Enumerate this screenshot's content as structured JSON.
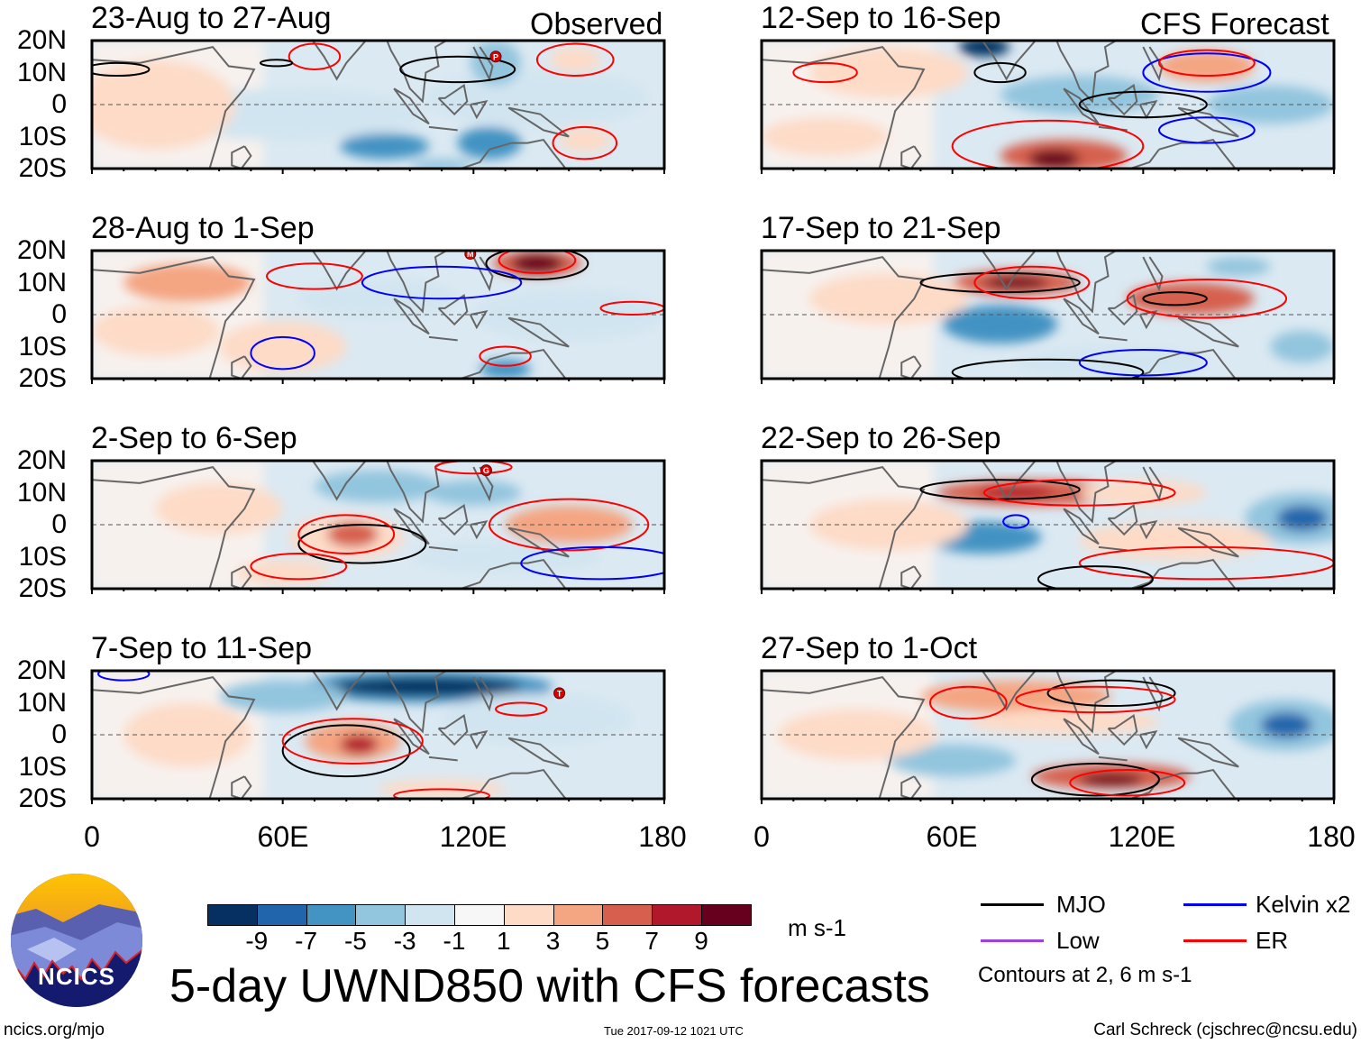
{
  "header": {
    "observed_label": "Observed",
    "forecast_label": "CFS Forecast"
  },
  "panels": [
    {
      "title": "23-Aug to 27-Aug",
      "column": "left",
      "storms": [
        {
          "label": "P",
          "lon": 127,
          "lat": 15
        }
      ]
    },
    {
      "title": "28-Aug to 1-Sep",
      "column": "left",
      "storms": [
        {
          "label": "M",
          "lon": 119,
          "lat": 19
        }
      ]
    },
    {
      "title": "2-Sep to 6-Sep",
      "column": "left",
      "storms": [
        {
          "label": "G",
          "lon": 124,
          "lat": 17
        }
      ]
    },
    {
      "title": "7-Sep to 11-Sep",
      "column": "left",
      "storms": [
        {
          "label": "T",
          "lon": 147,
          "lat": 13
        }
      ]
    },
    {
      "title": "12-Sep to 16-Sep",
      "column": "right",
      "storms": []
    },
    {
      "title": "17-Sep to 21-Sep",
      "column": "right",
      "storms": []
    },
    {
      "title": "22-Sep to 26-Sep",
      "column": "right",
      "storms": []
    },
    {
      "title": "27-Sep to 1-Oct",
      "column": "right",
      "storms": []
    }
  ],
  "axes": {
    "y_ticks": [
      "20N",
      "10N",
      "0",
      "10S",
      "20S"
    ],
    "x_ticks": [
      "0",
      "60E",
      "120E",
      "180"
    ]
  },
  "colorbar": {
    "colors": [
      "#053061",
      "#2166ac",
      "#4393c3",
      "#92c5de",
      "#d1e5f0",
      "#f7f7f7",
      "#fddbc7",
      "#f4a582",
      "#d6604d",
      "#b2182b",
      "#67001f"
    ],
    "labels": [
      "-9",
      "-7",
      "-5",
      "-3",
      "-1",
      "1",
      "3",
      "5",
      "7",
      "9"
    ],
    "units": "m s-1"
  },
  "legend": {
    "items": [
      {
        "label": "MJO",
        "color": "#000000"
      },
      {
        "label": "Kelvin x2",
        "color": "#0000ff"
      },
      {
        "label": "Low",
        "color": "#a040e0"
      },
      {
        "label": "ER",
        "color": "#ff0000"
      }
    ],
    "note": "Contours at 2, 6 m s-1"
  },
  "title": "5-day UWND850 with CFS forecasts",
  "logo_text": "NCICS",
  "footer": {
    "url": "ncics.org/mjo",
    "timestamp": "Tue 2017-09-12 1021 UTC",
    "credit": "Carl Schreck (cjschrec@ncsu.edu)"
  }
}
